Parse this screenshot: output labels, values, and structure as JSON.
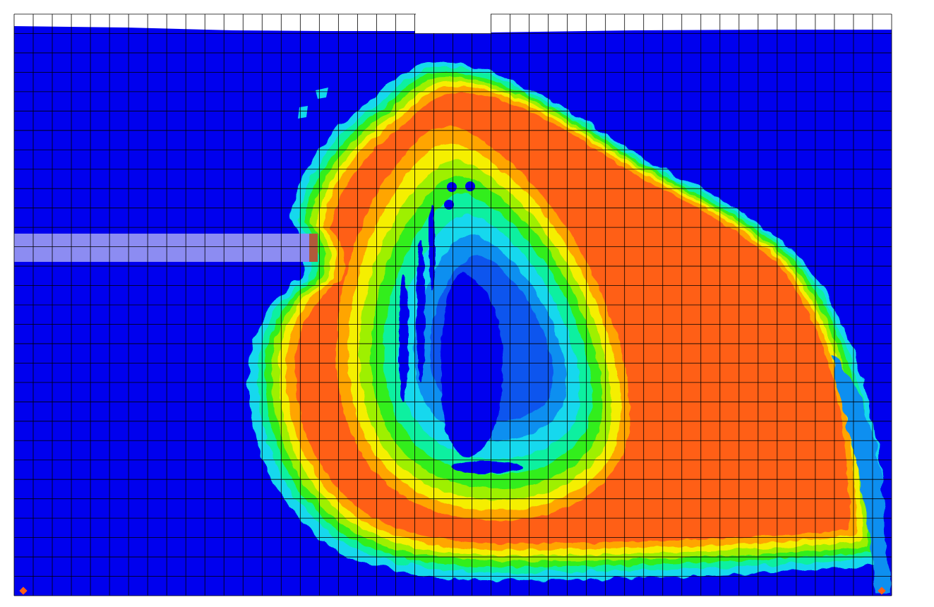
{
  "chart_data": {
    "type": "heatmap",
    "title": "",
    "xlabel": "",
    "ylabel": "",
    "grid": true,
    "legend": "none",
    "mesh": {
      "columns": 46,
      "rows": 30
    },
    "color_scale": [
      "#0000ee",
      "#0a55ee",
      "#0a8ff0",
      "#12d8ee",
      "#10f0a0",
      "#30ee1a",
      "#9ef000",
      "#f5ef00",
      "#ffa500",
      "#ff5e14"
    ],
    "regions": [
      {
        "name": "background",
        "level": 0
      },
      {
        "name": "contour-ring-low",
        "level": 4
      },
      {
        "name": "contour-ring-mid",
        "level": 6
      },
      {
        "name": "contour-ring-high",
        "level": 8
      },
      {
        "name": "contour-ring-peak",
        "level": 9
      },
      {
        "name": "inner-cavity",
        "level": 1
      }
    ],
    "inclusion": {
      "name": "inclusion-bar",
      "color": "#8c8cf2"
    },
    "markers": [
      {
        "name": "left-support",
        "color": "#ff5e14"
      },
      {
        "name": "right-support",
        "color": "#ff5e14"
      }
    ]
  }
}
